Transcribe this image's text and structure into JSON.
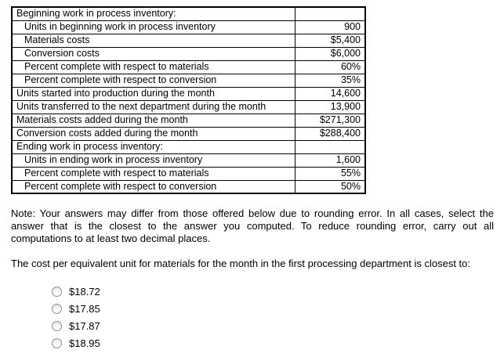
{
  "table": {
    "rows": [
      {
        "label": "Beginning work in process inventory:",
        "value": "",
        "indent": false
      },
      {
        "label": "Units in beginning work in process inventory",
        "value": "900",
        "indent": true
      },
      {
        "label": "Materials costs",
        "value": "$5,400",
        "indent": true
      },
      {
        "label": "Conversion costs",
        "value": "$6,000",
        "indent": true
      },
      {
        "label": "Percent complete with respect to materials",
        "value": "60%",
        "indent": true
      },
      {
        "label": "Percent complete with respect to conversion",
        "value": "35%",
        "indent": true
      },
      {
        "label": "Units started into production during the month",
        "value": "14,600",
        "indent": false
      },
      {
        "label": "Units transferred to the next department during the month",
        "value": "13,900",
        "indent": false
      },
      {
        "label": "Materials costs added during the month",
        "value": "$271,300",
        "indent": false
      },
      {
        "label": "Conversion costs added during the month",
        "value": "$288,400",
        "indent": false
      },
      {
        "label": "Ending work in process inventory:",
        "value": "",
        "indent": false
      },
      {
        "label": "Units in ending work in process inventory",
        "value": "1,600",
        "indent": true
      },
      {
        "label": "Percent complete with respect to materials",
        "value": "55%",
        "indent": true
      },
      {
        "label": "Percent complete with respect to conversion",
        "value": "50%",
        "indent": true
      }
    ]
  },
  "note": "Note: Your answers may differ from those offered below due to rounding error. In all cases, select the answer that is the closest to the answer you computed. To reduce rounding error, carry out all computations to at least two decimal places.",
  "question": "The cost per equivalent unit for materials for the month in the first processing department is closest to:",
  "options": [
    {
      "label": "$18.72",
      "selected": false
    },
    {
      "label": "$17.85",
      "selected": false
    },
    {
      "label": "$17.87",
      "selected": false
    },
    {
      "label": "$18.95",
      "selected": false
    }
  ]
}
